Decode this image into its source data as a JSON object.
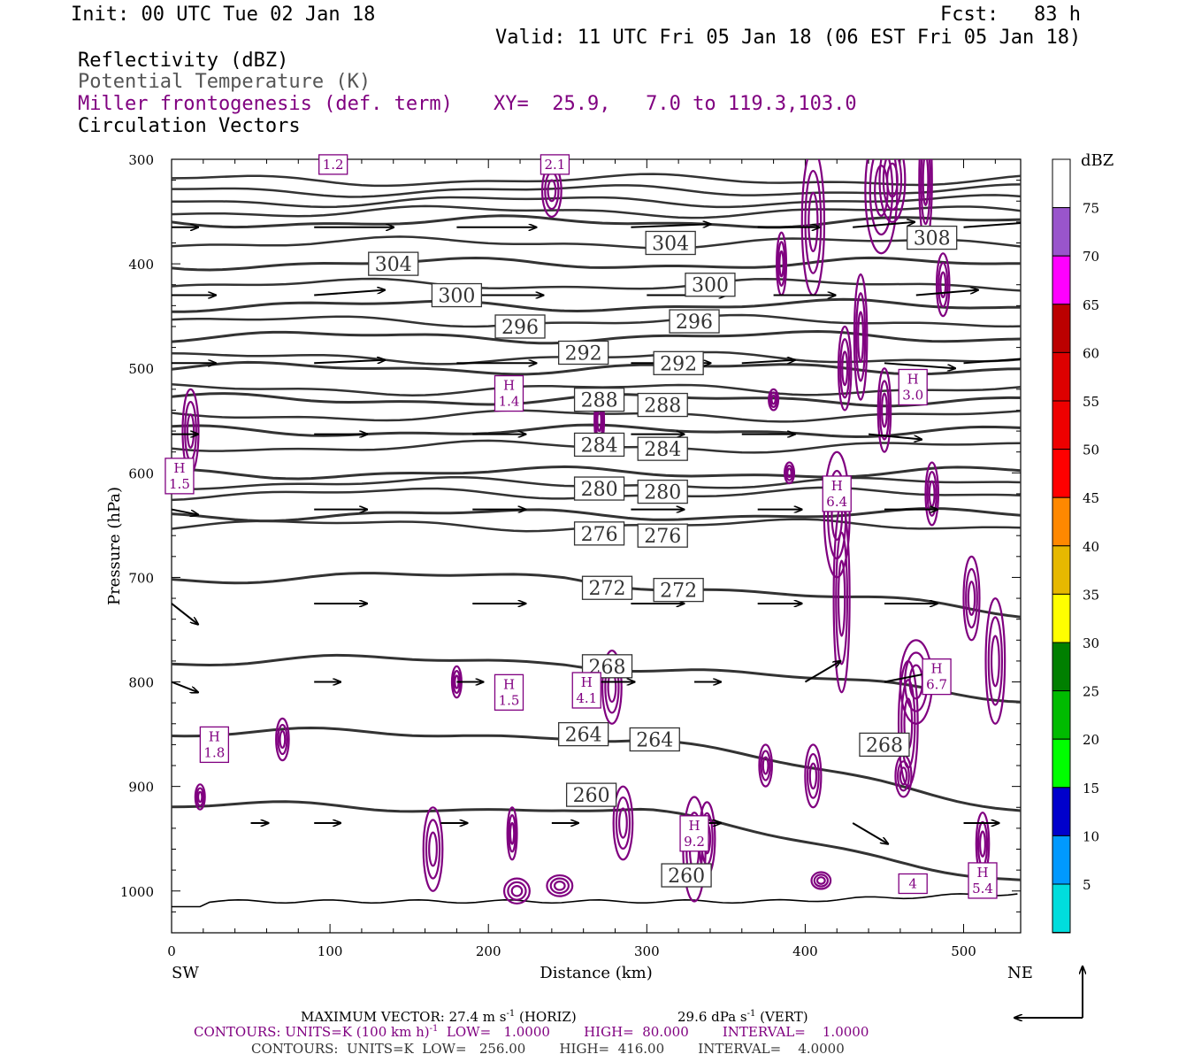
{
  "header": {
    "init": "Init: 00 UTC Tue 02 Jan 18",
    "fcst": "Fcst:   83 h",
    "valid": "Valid: 11 UTC Fri 05 Jan 18 (06 EST Fri 05 Jan 18)",
    "field_reflectivity": "Reflectivity (dBZ)",
    "field_theta": "Potential Temperature (K)",
    "field_frontogenesis": "Miller frontogenesis (def. term)",
    "field_vectors": "Circulation Vectors",
    "xy": "XY=  25.9,   7.0 to 119.3,103.0"
  },
  "axes": {
    "ylabel": "Pressure (hPa)",
    "xlabel": "Distance (km)",
    "left_end": "SW",
    "right_end": "NE",
    "y_ticks": [
      "300",
      "400",
      "500",
      "600",
      "700",
      "800",
      "900",
      "1000"
    ],
    "x_ticks": [
      "0",
      "100",
      "200",
      "300",
      "400",
      "500"
    ]
  },
  "colorbar": {
    "unit": "dBZ",
    "labels": [
      "75",
      "70",
      "65",
      "60",
      "55",
      "50",
      "45",
      "40",
      "35",
      "30",
      "25",
      "20",
      "15",
      "10",
      "5"
    ],
    "colors": [
      "#9955cc",
      "#ff00ff",
      "#bb0000",
      "#dd0000",
      "#ee0000",
      "#ff0000",
      "#ff8800",
      "#e6b800",
      "#ffff00",
      "#007f00",
      "#00bb00",
      "#00ff00",
      "#0000cc",
      "#0099ff",
      "#00dddd"
    ]
  },
  "footer": {
    "max_vector": "MAXIMUM VECTOR:  27.4 m s",
    "max_vector_exp": "-1",
    "horiz": " (HORIZ)",
    "vert_value": "29.6 dPa s",
    "vert_exp": "-1",
    "vert": " (VERT)",
    "contours1_a": "CONTOURS:  UNITS=K (100 km h)",
    "contours1_exp": "-1",
    "contours1_b": "  LOW=   1.0000        HIGH=  80.000        INTERVAL=    1.0000",
    "contours2": "CONTOURS:  UNITS=K  LOW=   256.00        HIGH=  416.00        INTERVAL=    4.0000"
  },
  "chart_data": {
    "type": "cross-section",
    "title": "",
    "xlabel": "Distance (km)",
    "ylabel": "Pressure (hPa)",
    "xlim": [
      0,
      536
    ],
    "ylim": [
      1040,
      300
    ],
    "theta_contours_K": [
      {
        "label": "308",
        "x": 480,
        "p": 375
      },
      {
        "label": "304",
        "x": 140,
        "p": 400
      },
      {
        "label": "304",
        "x": 315,
        "p": 380
      },
      {
        "label": "300",
        "x": 180,
        "p": 430
      },
      {
        "label": "300",
        "x": 340,
        "p": 420
      },
      {
        "label": "296",
        "x": 220,
        "p": 460
      },
      {
        "label": "296",
        "x": 330,
        "p": 455
      },
      {
        "label": "292",
        "x": 260,
        "p": 485
      },
      {
        "label": "292",
        "x": 320,
        "p": 495
      },
      {
        "label": "288",
        "x": 270,
        "p": 530
      },
      {
        "label": "288",
        "x": 310,
        "p": 535
      },
      {
        "label": "284",
        "x": 270,
        "p": 573
      },
      {
        "label": "284",
        "x": 310,
        "p": 577
      },
      {
        "label": "280",
        "x": 270,
        "p": 615
      },
      {
        "label": "280",
        "x": 310,
        "p": 618
      },
      {
        "label": "276",
        "x": 270,
        "p": 658
      },
      {
        "label": "276",
        "x": 310,
        "p": 660
      },
      {
        "label": "272",
        "x": 275,
        "p": 710
      },
      {
        "label": "272",
        "x": 320,
        "p": 712
      },
      {
        "label": "268",
        "x": 275,
        "p": 785
      },
      {
        "label": "268",
        "x": 450,
        "p": 860
      },
      {
        "label": "264",
        "x": 260,
        "p": 850
      },
      {
        "label": "264",
        "x": 305,
        "p": 855
      },
      {
        "label": "260",
        "x": 265,
        "p": 908
      },
      {
        "label": "260",
        "x": 325,
        "p": 985
      }
    ],
    "frontogenesis_maxima": [
      {
        "label": "H",
        "value": "1.5",
        "x": 5,
        "p": 603
      },
      {
        "label": "H",
        "value": "1.8",
        "x": 27,
        "p": 860
      },
      {
        "label": "H",
        "value": "1.4",
        "x": 213,
        "p": 524
      },
      {
        "label": "H",
        "value": "1.5",
        "x": 213,
        "p": 810
      },
      {
        "label": "H",
        "value": "4.1",
        "x": 262,
        "p": 808
      },
      {
        "label": "H",
        "value": "9.2",
        "x": 330,
        "p": 945
      },
      {
        "label": "H",
        "value": "6.4",
        "x": 420,
        "p": 620
      },
      {
        "label": "H",
        "value": "3.0",
        "x": 468,
        "p": 518
      },
      {
        "label": "H",
        "value": "6.7",
        "x": 483,
        "p": 795
      },
      {
        "label": "H",
        "value": "5.4",
        "x": 512,
        "p": 990
      },
      {
        "label": "",
        "value": "1.2",
        "x": 102,
        "p": 305
      },
      {
        "label": "",
        "value": "2.1",
        "x": 242,
        "p": 305
      },
      {
        "label": "",
        "value": "4",
        "x": 468,
        "p": 993
      }
    ]
  }
}
